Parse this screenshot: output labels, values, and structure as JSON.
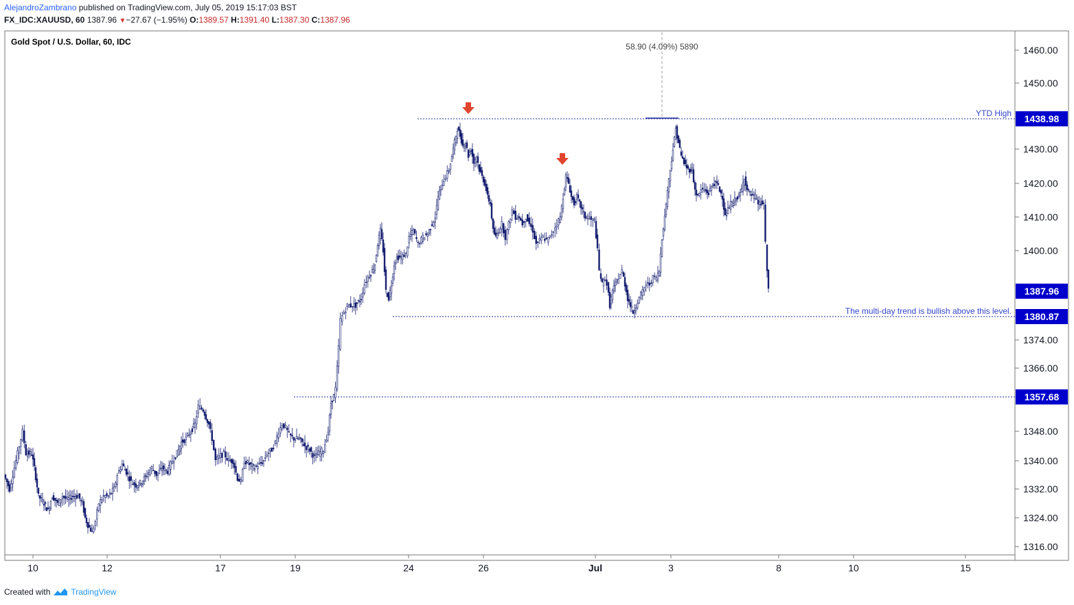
{
  "header": {
    "author": "AlejandroZambrano",
    "published_text": " published on TradingView.com, July 05, 2019 15:17:03 BST",
    "symbol": "FX_IDC:XAUUSD, 60",
    "last": "1387.96",
    "change": "−27.67 (−1.95%)",
    "o_label": "O:",
    "o_value": "1389.57",
    "h_label": "H:",
    "h_value": "1391.40",
    "l_label": "L:",
    "l_value": "1387.30",
    "c_label": "C:",
    "c_value": "1387.96"
  },
  "footer": {
    "created_with": "Created with",
    "brand": "TradingView"
  },
  "colors": {
    "candle": "#131c6e",
    "hline": "#1e2b9c",
    "badge": "#0000cc",
    "arrow": "#e0452f",
    "grid_border": "#777777"
  },
  "chart_data": {
    "type": "candlestick",
    "title": "Gold Spot / U.S. Dollar, 60, IDC",
    "y_ticks": [
      1316,
      1324,
      1332,
      1340,
      1348,
      1366,
      1374,
      1400,
      1410,
      1420,
      1430,
      1450,
      1460
    ],
    "y_tick_labels": [
      "1316.00",
      "1324.00",
      "1332.00",
      "1340.00",
      "1348.00",
      "1366.00",
      "1374.00",
      "1400.00",
      "1410.00",
      "1420.00",
      "1430.00",
      "1450.00",
      "1460.00"
    ],
    "x_tick_labels": [
      "10",
      "12",
      "17",
      "19",
      "24",
      "26",
      "Jul",
      "3",
      "8",
      "10",
      "15"
    ],
    "horizontal_levels": [
      {
        "value": 1438.98,
        "label": "1438.98",
        "annotation": "YTD High"
      },
      {
        "value": 1380.87,
        "label": "1380.87",
        "annotation": "The multi-day trend is bullish above this level."
      },
      {
        "value": 1357.68,
        "label": "1357.68",
        "annotation": ""
      }
    ],
    "last_price": {
      "value": 1387.96,
      "label": "1387.96"
    },
    "measure_annotation": "58.90 (4.09%) 5890",
    "price_path": [
      [
        0,
        1336
      ],
      [
        8,
        1332
      ],
      [
        15,
        1338
      ],
      [
        22,
        1344
      ],
      [
        27,
        1348
      ],
      [
        32,
        1342
      ],
      [
        40,
        1342
      ],
      [
        44,
        1338
      ],
      [
        50,
        1330
      ],
      [
        58,
        1328
      ],
      [
        64,
        1326
      ],
      [
        70,
        1330
      ],
      [
        78,
        1328
      ],
      [
        85,
        1330
      ],
      [
        92,
        1329
      ],
      [
        100,
        1330
      ],
      [
        108,
        1330
      ],
      [
        114,
        1328
      ],
      [
        118,
        1324
      ],
      [
        122,
        1322
      ],
      [
        128,
        1320
      ],
      [
        133,
        1323
      ],
      [
        138,
        1328
      ],
      [
        145,
        1330
      ],
      [
        152,
        1330
      ],
      [
        160,
        1332
      ],
      [
        165,
        1336
      ],
      [
        172,
        1339
      ],
      [
        180,
        1336
      ],
      [
        185,
        1334
      ],
      [
        192,
        1333
      ],
      [
        200,
        1334
      ],
      [
        208,
        1336
      ],
      [
        215,
        1338
      ],
      [
        222,
        1336
      ],
      [
        230,
        1338
      ],
      [
        238,
        1337
      ],
      [
        245,
        1340
      ],
      [
        252,
        1342
      ],
      [
        258,
        1345
      ],
      [
        265,
        1346
      ],
      [
        272,
        1348
      ],
      [
        278,
        1350
      ],
      [
        283,
        1355
      ],
      [
        290,
        1354
      ],
      [
        298,
        1350
      ],
      [
        303,
        1346
      ],
      [
        308,
        1340
      ],
      [
        313,
        1341
      ],
      [
        320,
        1342
      ],
      [
        327,
        1340
      ],
      [
        333,
        1340
      ],
      [
        340,
        1335
      ],
      [
        345,
        1334
      ],
      [
        350,
        1340
      ],
      [
        357,
        1339
      ],
      [
        365,
        1338
      ],
      [
        372,
        1339
      ],
      [
        378,
        1340
      ],
      [
        383,
        1342
      ],
      [
        390,
        1343
      ],
      [
        395,
        1345
      ],
      [
        400,
        1348
      ],
      [
        405,
        1350
      ],
      [
        410,
        1349
      ],
      [
        415,
        1347
      ],
      [
        422,
        1346
      ],
      [
        430,
        1346
      ],
      [
        438,
        1344
      ],
      [
        445,
        1343
      ],
      [
        452,
        1341
      ],
      [
        458,
        1342
      ],
      [
        465,
        1343
      ],
      [
        472,
        1348
      ],
      [
        476,
        1356
      ],
      [
        480,
        1358
      ],
      [
        483,
        1360
      ],
      [
        487,
        1372
      ],
      [
        490,
        1380
      ],
      [
        495,
        1382
      ],
      [
        500,
        1384
      ],
      [
        505,
        1384
      ],
      [
        512,
        1384
      ],
      [
        520,
        1386
      ],
      [
        525,
        1390
      ],
      [
        530,
        1392
      ],
      [
        536,
        1394
      ],
      [
        540,
        1396
      ],
      [
        544,
        1402
      ],
      [
        548,
        1406
      ],
      [
        552,
        1400
      ],
      [
        556,
        1388
      ],
      [
        560,
        1386
      ],
      [
        564,
        1390
      ],
      [
        568,
        1396
      ],
      [
        572,
        1398
      ],
      [
        578,
        1398
      ],
      [
        585,
        1399
      ],
      [
        590,
        1404
      ],
      [
        596,
        1406
      ],
      [
        603,
        1402
      ],
      [
        610,
        1404
      ],
      [
        617,
        1405
      ],
      [
        623,
        1408
      ],
      [
        628,
        1410
      ],
      [
        632,
        1416
      ],
      [
        638,
        1420
      ],
      [
        643,
        1422
      ],
      [
        648,
        1424
      ],
      [
        652,
        1428
      ],
      [
        656,
        1432
      ],
      [
        660,
        1436
      ],
      [
        664,
        1434
      ],
      [
        668,
        1431
      ],
      [
        672,
        1432
      ],
      [
        676,
        1428
      ],
      [
        680,
        1430
      ],
      [
        684,
        1426
      ],
      [
        688,
        1428
      ],
      [
        692,
        1424
      ],
      [
        696,
        1422
      ],
      [
        700,
        1420
      ],
      [
        704,
        1416
      ],
      [
        708,
        1414
      ],
      [
        712,
        1406
      ],
      [
        716,
        1404
      ],
      [
        720,
        1406
      ],
      [
        725,
        1408
      ],
      [
        730,
        1404
      ],
      [
        735,
        1408
      ],
      [
        740,
        1412
      ],
      [
        745,
        1410
      ],
      [
        750,
        1410
      ],
      [
        755,
        1408
      ],
      [
        760,
        1410
      ],
      [
        765,
        1408
      ],
      [
        770,
        1406
      ],
      [
        775,
        1402
      ],
      [
        780,
        1403
      ],
      [
        785,
        1404
      ],
      [
        790,
        1403
      ],
      [
        795,
        1404
      ],
      [
        800,
        1406
      ],
      [
        805,
        1408
      ],
      [
        810,
        1410
      ],
      [
        814,
        1416
      ],
      [
        818,
        1422
      ],
      [
        822,
        1420
      ],
      [
        826,
        1416
      ],
      [
        830,
        1414
      ],
      [
        834,
        1416
      ],
      [
        838,
        1414
      ],
      [
        842,
        1412
      ],
      [
        846,
        1410
      ],
      [
        850,
        1410
      ],
      [
        855,
        1409
      ],
      [
        860,
        1409
      ],
      [
        864,
        1400
      ],
      [
        867,
        1394
      ],
      [
        871,
        1390
      ],
      [
        875,
        1392
      ],
      [
        878,
        1390
      ],
      [
        882,
        1384
      ],
      [
        886,
        1388
      ],
      [
        890,
        1390
      ],
      [
        895,
        1392
      ],
      [
        900,
        1394
      ],
      [
        904,
        1390
      ],
      [
        908,
        1386
      ],
      [
        912,
        1384
      ],
      [
        916,
        1382
      ],
      [
        920,
        1384
      ],
      [
        925,
        1386
      ],
      [
        930,
        1388
      ],
      [
        935,
        1390
      ],
      [
        940,
        1390
      ],
      [
        945,
        1392
      ],
      [
        950,
        1392
      ],
      [
        954,
        1394
      ],
      [
        958,
        1404
      ],
      [
        962,
        1410
      ],
      [
        966,
        1418
      ],
      [
        970,
        1424
      ],
      [
        974,
        1430
      ],
      [
        978,
        1436
      ],
      [
        982,
        1432
      ],
      [
        986,
        1428
      ],
      [
        990,
        1426
      ],
      [
        996,
        1424
      ],
      [
        1002,
        1424
      ],
      [
        1006,
        1418
      ],
      [
        1010,
        1416
      ],
      [
        1015,
        1418
      ],
      [
        1020,
        1418
      ],
      [
        1026,
        1417
      ],
      [
        1032,
        1420
      ],
      [
        1038,
        1420
      ],
      [
        1042,
        1418
      ],
      [
        1046,
        1416
      ],
      [
        1050,
        1410
      ],
      [
        1054,
        1412
      ],
      [
        1058,
        1414
      ],
      [
        1062,
        1414
      ],
      [
        1066,
        1416
      ],
      [
        1070,
        1416
      ],
      [
        1074,
        1418
      ],
      [
        1078,
        1422
      ],
      [
        1082,
        1418
      ],
      [
        1086,
        1417
      ],
      [
        1090,
        1416
      ],
      [
        1094,
        1416
      ],
      [
        1098,
        1414
      ],
      [
        1102,
        1414
      ],
      [
        1106,
        1414
      ],
      [
        1109,
        1402
      ],
      [
        1111,
        1394
      ],
      [
        1113,
        1388
      ]
    ]
  }
}
